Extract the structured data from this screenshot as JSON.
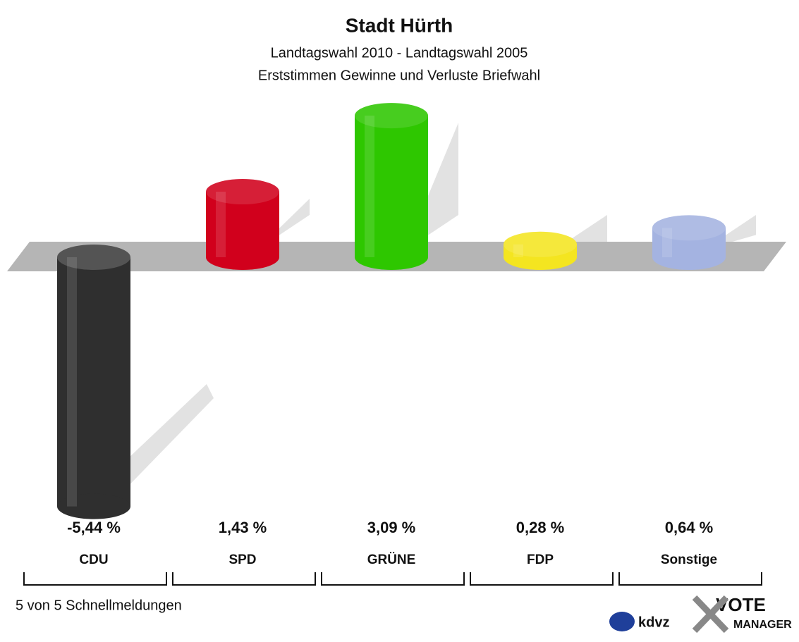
{
  "chart_data": {
    "type": "bar",
    "title": "Stadt Hürth",
    "subtitle": "Landtagswahl 2010 - Landtagswahl 2005",
    "subtitle2": "Erststimmen Gewinne und Verluste Briefwahl",
    "categories": [
      "CDU",
      "SPD",
      "GRÜNE",
      "FDP",
      "Sonstige"
    ],
    "values": [
      -5.44,
      1.43,
      3.09,
      0.28,
      0.64
    ],
    "value_labels": [
      "-5,44 %",
      "1,43 %",
      "3,09 %",
      "0,28 %",
      "0,64 %"
    ],
    "colors": [
      "#2f2f2f",
      "#d1001c",
      "#2ec700",
      "#f4e520",
      "#a4b3e1"
    ],
    "footer": "5 von 5 Schnellmeldungen",
    "logo_left": "kdvz",
    "logo_right": [
      "VOTE",
      "MANAGER"
    ]
  }
}
